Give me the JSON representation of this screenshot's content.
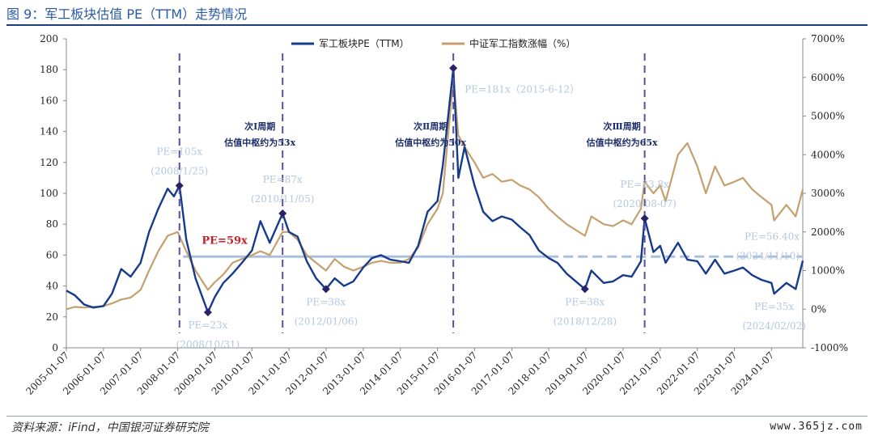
{
  "page": {
    "title": "图 9：军工板块估值 PE（TTM）走势情况",
    "source": "资料来源：iFind，中国银河证券研究院",
    "watermark": "www.365jz.com"
  },
  "colors": {
    "pe_line": "#163a8c",
    "index_line": "#c4a06e",
    "median_line": "#a9c0e0",
    "vline": "#5b4e9c",
    "marker": "#2a2266",
    "annotation": "#b4c7e0",
    "red_label": "#c0232c"
  },
  "chart_data": {
    "type": "line",
    "title": "",
    "series": [
      {
        "name": "军工板块PE（TTM）",
        "axis": "left",
        "points": [
          [
            "2005-01-07",
            37
          ],
          [
            "2005-04-01",
            34
          ],
          [
            "2005-07-01",
            28
          ],
          [
            "2005-10-01",
            26
          ],
          [
            "2006-01-07",
            27
          ],
          [
            "2006-04-01",
            35
          ],
          [
            "2006-07-01",
            51
          ],
          [
            "2006-10-01",
            46
          ],
          [
            "2007-01-07",
            55
          ],
          [
            "2007-04-01",
            75
          ],
          [
            "2007-07-01",
            90
          ],
          [
            "2007-10-01",
            103
          ],
          [
            "2007-12-01",
            98
          ],
          [
            "2008-01-25",
            105
          ],
          [
            "2008-04-01",
            70
          ],
          [
            "2008-07-01",
            45
          ],
          [
            "2008-10-31",
            23
          ],
          [
            "2009-01-07",
            33
          ],
          [
            "2009-04-01",
            42
          ],
          [
            "2009-07-01",
            48
          ],
          [
            "2009-10-01",
            55
          ],
          [
            "2010-01-07",
            63
          ],
          [
            "2010-04-01",
            82
          ],
          [
            "2010-07-01",
            68
          ],
          [
            "2010-11-05",
            87
          ],
          [
            "2011-01-07",
            75
          ],
          [
            "2011-04-01",
            72
          ],
          [
            "2011-07-01",
            56
          ],
          [
            "2011-10-01",
            45
          ],
          [
            "2012-01-06",
            38
          ],
          [
            "2012-04-01",
            45
          ],
          [
            "2012-07-01",
            40
          ],
          [
            "2012-10-01",
            43
          ],
          [
            "2013-01-07",
            52
          ],
          [
            "2013-04-01",
            58
          ],
          [
            "2013-07-01",
            60
          ],
          [
            "2013-10-01",
            57
          ],
          [
            "2014-01-07",
            56
          ],
          [
            "2014-04-01",
            55
          ],
          [
            "2014-07-01",
            66
          ],
          [
            "2014-10-01",
            88
          ],
          [
            "2015-01-07",
            95
          ],
          [
            "2015-03-01",
            118
          ],
          [
            "2015-06-12",
            181
          ],
          [
            "2015-08-01",
            110
          ],
          [
            "2015-10-01",
            130
          ],
          [
            "2016-01-07",
            105
          ],
          [
            "2016-04-01",
            88
          ],
          [
            "2016-07-01",
            82
          ],
          [
            "2016-10-01",
            85
          ],
          [
            "2017-01-07",
            83
          ],
          [
            "2017-04-01",
            78
          ],
          [
            "2017-07-01",
            73
          ],
          [
            "2017-10-01",
            63
          ],
          [
            "2018-01-07",
            58
          ],
          [
            "2018-04-01",
            55
          ],
          [
            "2018-07-01",
            48
          ],
          [
            "2018-12-28",
            38
          ],
          [
            "2019-03-01",
            50
          ],
          [
            "2019-07-01",
            42
          ],
          [
            "2019-10-01",
            43
          ],
          [
            "2020-01-07",
            47
          ],
          [
            "2020-04-01",
            46
          ],
          [
            "2020-07-01",
            56
          ],
          [
            "2020-08-07",
            83.8
          ],
          [
            "2020-11-01",
            62
          ],
          [
            "2021-01-07",
            66
          ],
          [
            "2021-03-01",
            55
          ],
          [
            "2021-07-01",
            68
          ],
          [
            "2021-10-01",
            57
          ],
          [
            "2022-01-07",
            56
          ],
          [
            "2022-04-01",
            48
          ],
          [
            "2022-07-01",
            57
          ],
          [
            "2022-10-01",
            48
          ],
          [
            "2023-01-07",
            50
          ],
          [
            "2023-04-01",
            52
          ],
          [
            "2023-07-01",
            47
          ],
          [
            "2023-10-01",
            44
          ],
          [
            "2024-01-07",
            42
          ],
          [
            "2024-02-02",
            35
          ],
          [
            "2024-06-01",
            42
          ],
          [
            "2024-09-01",
            38
          ],
          [
            "2024-11-10",
            56.4
          ]
        ]
      },
      {
        "name": "中证军工指数涨幅（%）",
        "axis": "right",
        "points": [
          [
            "2005-01-07",
            0
          ],
          [
            "2005-04-01",
            60
          ],
          [
            "2005-07-01",
            40
          ],
          [
            "2005-10-01",
            60
          ],
          [
            "2006-01-07",
            80
          ],
          [
            "2006-04-01",
            150
          ],
          [
            "2006-07-01",
            250
          ],
          [
            "2006-10-01",
            300
          ],
          [
            "2007-01-07",
            500
          ],
          [
            "2007-04-01",
            1000
          ],
          [
            "2007-07-01",
            1500
          ],
          [
            "2007-10-01",
            1900
          ],
          [
            "2008-01-07",
            2000
          ],
          [
            "2008-04-01",
            1500
          ],
          [
            "2008-07-01",
            1000
          ],
          [
            "2008-10-31",
            500
          ],
          [
            "2009-01-07",
            700
          ],
          [
            "2009-04-01",
            900
          ],
          [
            "2009-07-01",
            1200
          ],
          [
            "2009-10-01",
            1300
          ],
          [
            "2010-01-07",
            1400
          ],
          [
            "2010-04-01",
            1500
          ],
          [
            "2010-07-01",
            1400
          ],
          [
            "2010-11-05",
            2000
          ],
          [
            "2011-01-07",
            2000
          ],
          [
            "2011-04-01",
            1800
          ],
          [
            "2011-07-01",
            1400
          ],
          [
            "2011-10-01",
            1200
          ],
          [
            "2012-01-06",
            1000
          ],
          [
            "2012-04-01",
            1300
          ],
          [
            "2012-07-01",
            1100
          ],
          [
            "2012-10-01",
            1000
          ],
          [
            "2013-01-07",
            1100
          ],
          [
            "2013-04-01",
            1200
          ],
          [
            "2013-07-01",
            1250
          ],
          [
            "2013-10-01",
            1200
          ],
          [
            "2014-01-07",
            1200
          ],
          [
            "2014-04-01",
            1300
          ],
          [
            "2014-07-01",
            1600
          ],
          [
            "2014-10-01",
            2200
          ],
          [
            "2015-01-07",
            2600
          ],
          [
            "2015-03-01",
            3000
          ],
          [
            "2015-06-12",
            6000
          ],
          [
            "2015-08-01",
            4500
          ],
          [
            "2015-10-01",
            4200
          ],
          [
            "2016-01-07",
            3800
          ],
          [
            "2016-04-01",
            3400
          ],
          [
            "2016-07-01",
            3500
          ],
          [
            "2016-10-01",
            3300
          ],
          [
            "2017-01-07",
            3350
          ],
          [
            "2017-04-01",
            3200
          ],
          [
            "2017-07-01",
            3100
          ],
          [
            "2017-10-01",
            2900
          ],
          [
            "2018-01-07",
            2600
          ],
          [
            "2018-04-01",
            2400
          ],
          [
            "2018-07-01",
            2200
          ],
          [
            "2018-12-28",
            1900
          ],
          [
            "2019-03-01",
            2400
          ],
          [
            "2019-07-01",
            2200
          ],
          [
            "2019-10-01",
            2150
          ],
          [
            "2020-01-07",
            2300
          ],
          [
            "2020-04-01",
            2200
          ],
          [
            "2020-07-01",
            2600
          ],
          [
            "2020-08-07",
            3300
          ],
          [
            "2020-11-01",
            3000
          ],
          [
            "2021-01-07",
            3200
          ],
          [
            "2021-03-01",
            2800
          ],
          [
            "2021-07-01",
            4000
          ],
          [
            "2021-10-01",
            4300
          ],
          [
            "2022-01-07",
            3700
          ],
          [
            "2022-04-01",
            3000
          ],
          [
            "2022-07-01",
            3700
          ],
          [
            "2022-10-01",
            3200
          ],
          [
            "2023-01-07",
            3300
          ],
          [
            "2023-04-01",
            3400
          ],
          [
            "2023-07-01",
            3100
          ],
          [
            "2023-10-01",
            2900
          ],
          [
            "2024-01-07",
            2700
          ],
          [
            "2024-02-02",
            2300
          ],
          [
            "2024-06-01",
            2700
          ],
          [
            "2024-09-01",
            2400
          ],
          [
            "2024-11-10",
            3100
          ]
        ]
      }
    ],
    "x_range": [
      "2005-01-07",
      "2024-11-10"
    ],
    "x_ticks": [
      "2005-01-07",
      "2006-01-07",
      "2007-01-07",
      "2008-01-07",
      "2009-01-07",
      "2010-01-07",
      "2011-01-07",
      "2012-01-07",
      "2013-01-07",
      "2014-01-07",
      "2015-01-07",
      "2016-01-07",
      "2017-01-07",
      "2018-01-07",
      "2019-01-07",
      "2020-01-07",
      "2021-01-07",
      "2022-01-07",
      "2023-01-07",
      "2024-01-07"
    ],
    "y_left": {
      "min": 0,
      "max": 200,
      "ticks": [
        0,
        20,
        40,
        60,
        80,
        100,
        120,
        140,
        160,
        180,
        200
      ]
    },
    "y_right": {
      "min": -1000,
      "max": 7000,
      "ticks": [
        "-1000%",
        "0%",
        "1000%",
        "2000%",
        "3000%",
        "4000%",
        "5000%",
        "6000%",
        "7000%"
      ]
    },
    "legend_position": "top-center",
    "grid": false,
    "median_line": {
      "value": 59,
      "label": "PE=59x",
      "solid_until": "2018-01-07",
      "dashed_until": "2024-11-10"
    },
    "cycle_lines": [
      "2008-01-25",
      "2010-11-05",
      "2015-06-12",
      "2020-08-07"
    ],
    "markers": [
      {
        "date": "2008-01-25",
        "pe": 105
      },
      {
        "date": "2008-10-31",
        "pe": 23
      },
      {
        "date": "2010-11-05",
        "pe": 87
      },
      {
        "date": "2012-01-06",
        "pe": 38
      },
      {
        "date": "2015-06-12",
        "pe": 181
      },
      {
        "date": "2018-12-28",
        "pe": 38
      },
      {
        "date": "2020-08-07",
        "pe": 83.8
      }
    ],
    "annotations": [
      {
        "date": "2008-01-25",
        "pe": 105,
        "line1": "PE=105x",
        "line2": "(2008/1/25)",
        "pos": "above"
      },
      {
        "date": "2008-10-31",
        "pe": 23,
        "line1": "PE=23x",
        "line2": "(2008/10/31)",
        "pos": "below"
      },
      {
        "date": "2010-11-05",
        "pe": 87,
        "line1": "PE=87x",
        "line2": "(2010/11/05)",
        "pos": "above"
      },
      {
        "date": "2012-01-06",
        "pe": 38,
        "line1": "PE=38x",
        "line2": "(2012/01/06)",
        "pos": "below"
      },
      {
        "date": "2015-06-12",
        "pe": 181,
        "line1": "PE=181x（2015-6-12）",
        "line2": "",
        "pos": "right"
      },
      {
        "date": "2018-12-28",
        "pe": 38,
        "line1": "PE=38x",
        "line2": "(2018/12/28)",
        "pos": "below"
      },
      {
        "date": "2020-08-07",
        "pe": 83.8,
        "line1": "PE=83.8x",
        "line2": "(2020-08-07)",
        "pos": "above"
      },
      {
        "date": "2024-02-02",
        "pe": 35,
        "line1": "PE=35x",
        "line2": "(2024/02/02)",
        "pos": "below"
      },
      {
        "date": "2024-11-10",
        "pe": 56.4,
        "line1": "PE=56.40x",
        "line2": "(2024/11/10)",
        "pos": "above-left"
      }
    ],
    "cycle_labels": [
      {
        "date": "2010-11-05",
        "line1": "次Ⅰ周期",
        "line2": "估值中枢约为53x"
      },
      {
        "date": "2015-06-12",
        "line1": "次Ⅱ周期",
        "line2": "估值中枢约为50x"
      },
      {
        "date": "2020-08-07",
        "line1": "次Ⅲ周期",
        "line2": "估值中枢约为65x"
      }
    ]
  }
}
